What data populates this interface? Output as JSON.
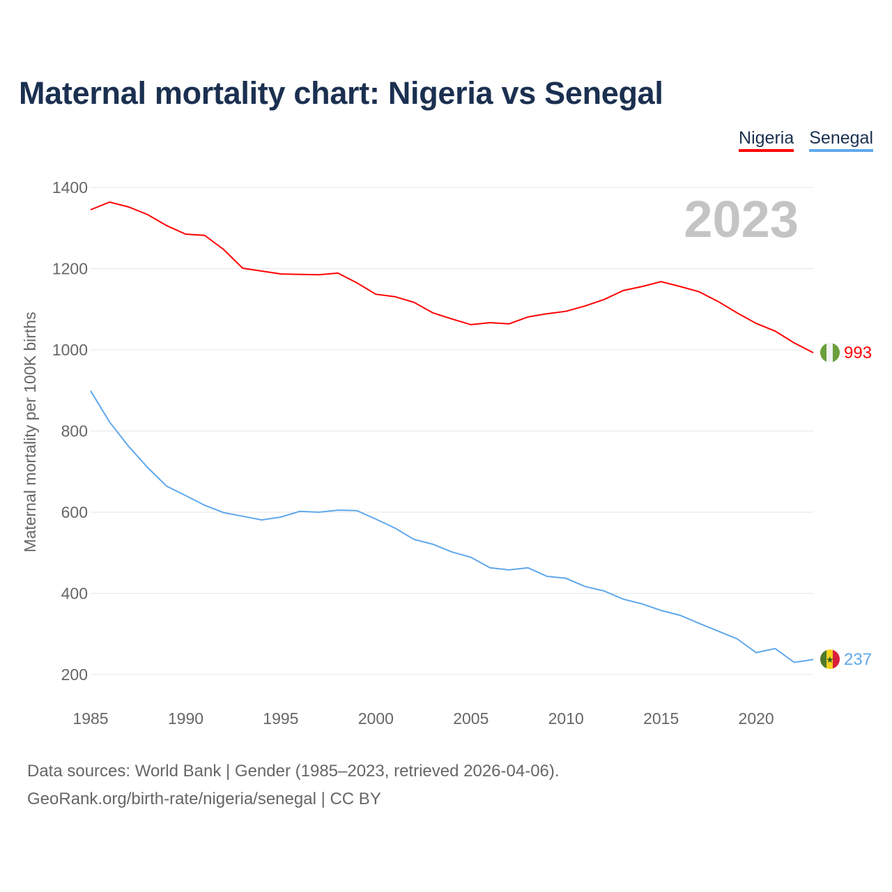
{
  "chart_data": {
    "type": "line",
    "title": "Maternal mortality chart: Nigeria vs Senegal",
    "xlabel": "",
    "ylabel": "Maternal mortality per 100K births",
    "ylim": [
      200,
      1400
    ],
    "xlim": [
      1985,
      2023
    ],
    "yticks": [
      "200",
      "400",
      "600",
      "800",
      "1000",
      "1200",
      "1400"
    ],
    "xticks": [
      "1985",
      "1990",
      "1995",
      "2000",
      "2005",
      "2010",
      "2015",
      "2020"
    ],
    "grid": true,
    "legend_placement": "top-right",
    "year_label": "2023",
    "x": [
      1985,
      1986,
      1987,
      1988,
      1989,
      1990,
      1991,
      1992,
      1993,
      1994,
      1995,
      1996,
      1997,
      1998,
      1999,
      2000,
      2001,
      2002,
      2003,
      2004,
      2005,
      2006,
      2007,
      2008,
      2009,
      2010,
      2011,
      2012,
      2013,
      2014,
      2015,
      2016,
      2017,
      2018,
      2019,
      2020,
      2021,
      2022,
      2023
    ],
    "series": [
      {
        "name": "Nigeria",
        "color": "#ff0000",
        "end_label": "993",
        "values": [
          1345,
          1364,
          1352,
          1333,
          1306,
          1285,
          1282,
          1247,
          1201,
          1194,
          1187,
          1186,
          1185,
          1189,
          1165,
          1137,
          1131,
          1117,
          1091,
          1076,
          1062,
          1067,
          1064,
          1081,
          1089,
          1095,
          1108,
          1124,
          1146,
          1156,
          1168,
          1156,
          1143,
          1119,
          1091,
          1065,
          1046,
          1017,
          993
        ]
      },
      {
        "name": "Senegal",
        "color": "#5fa8ec",
        "end_label": "237",
        "values": [
          899,
          822,
          762,
          710,
          664,
          641,
          617,
          599,
          590,
          581,
          588,
          602,
          600,
          605,
          604,
          583,
          561,
          533,
          521,
          502,
          489,
          463,
          458,
          463,
          442,
          437,
          417,
          406,
          386,
          374,
          358,
          346,
          326,
          307,
          288,
          254,
          264,
          230,
          237
        ]
      }
    ]
  },
  "footer": {
    "line1": "Data sources: World Bank | Gender (1985–2023, retrieved 2026-04-06).",
    "line2": "GeoRank.org/birth-rate/nigeria/senegal | CC BY"
  }
}
